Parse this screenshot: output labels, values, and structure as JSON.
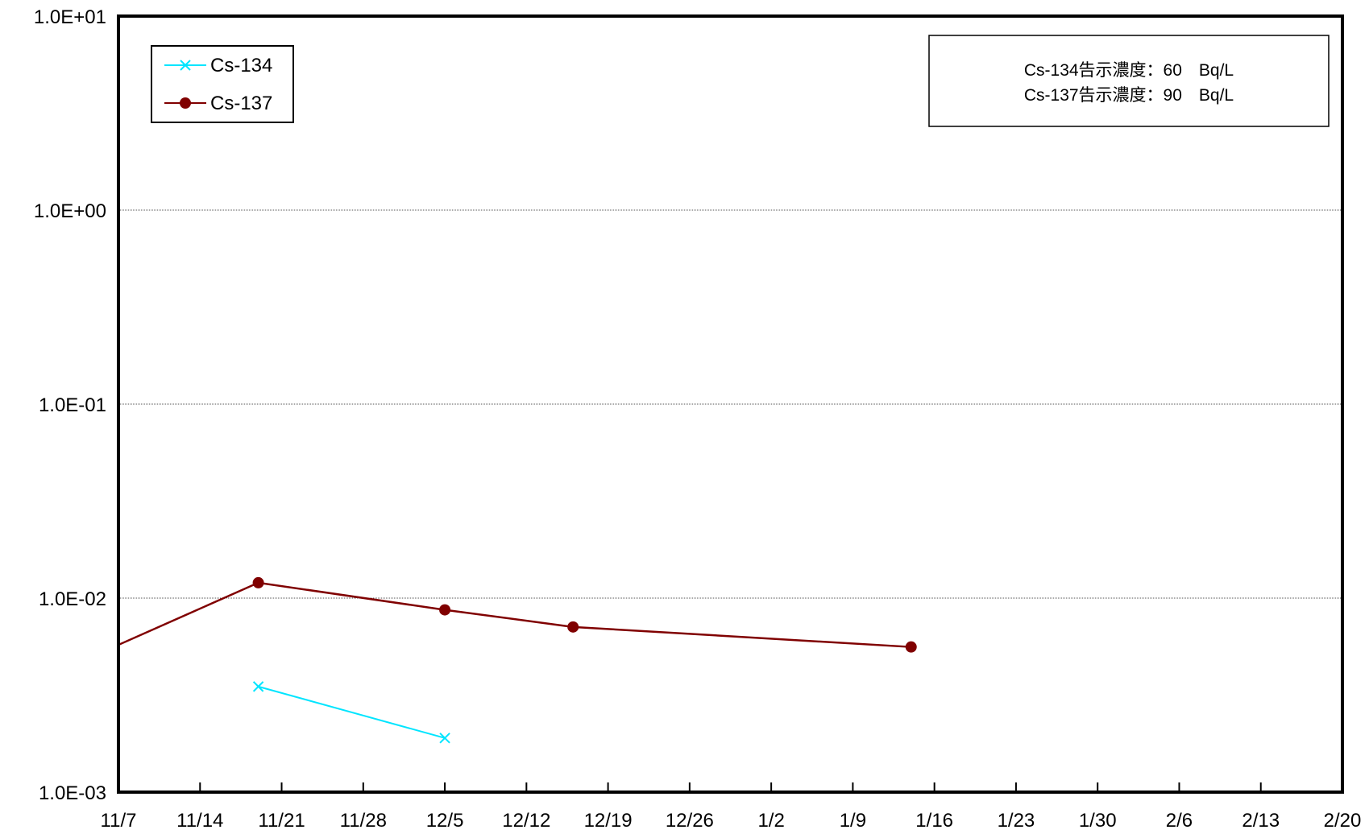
{
  "chart_data": {
    "type": "line",
    "title": "",
    "xlabel": "",
    "ylabel": "",
    "y_scale": "log",
    "ylim": [
      0.001,
      10
    ],
    "xlim": [
      "2011-11-07",
      "2012-02-20"
    ],
    "y_ticks": [
      "1.0E-03",
      "1.0E-02",
      "1.0E-01",
      "1.0E+00",
      "1.0E+01"
    ],
    "x_ticks": [
      "11/7",
      "11/14",
      "11/21",
      "11/28",
      "12/5",
      "12/12",
      "12/19",
      "12/26",
      "1/2",
      "1/9",
      "1/16",
      "1/23",
      "1/30",
      "2/6",
      "2/13",
      "2/20"
    ],
    "grid": "horizontal",
    "legend_position": "top-left",
    "series": [
      {
        "name": "Cs-134",
        "color": "#00e5ff",
        "marker": "x",
        "points": [
          {
            "x": "2011-11-19",
            "y": 0.0035
          },
          {
            "x": "2011-12-05",
            "y": 0.0019
          }
        ]
      },
      {
        "name": "Cs-137",
        "color": "#800000",
        "marker": "circle",
        "points": [
          {
            "x": "2011-11-06",
            "y": 0.0054
          },
          {
            "x": "2011-11-19",
            "y": 0.012
          },
          {
            "x": "2011-12-05",
            "y": 0.0087
          },
          {
            "x": "2011-12-16",
            "y": 0.0071
          },
          {
            "x": "2012-01-14",
            "y": 0.0056
          }
        ]
      }
    ],
    "annotations": [
      "Cs-134告示濃度：60　Bq/L",
      "Cs-137告示濃度：90　Bq/L"
    ]
  }
}
